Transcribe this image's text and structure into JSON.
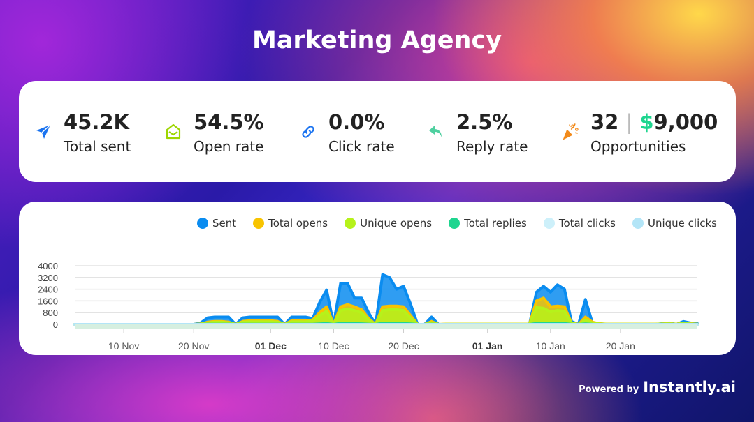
{
  "title": "Marketing Agency",
  "stats": [
    {
      "icon": "paper-plane-icon",
      "value": "45.2K",
      "label": "Total sent",
      "color": "#1a73f0"
    },
    {
      "icon": "open-envelope-icon",
      "value": "54.5%",
      "label": "Open rate",
      "color": "#9ed600"
    },
    {
      "icon": "link-icon",
      "value": "0.0%",
      "label": "Click rate",
      "color": "#1a73f0"
    },
    {
      "icon": "reply-arrow-icon",
      "value": "2.5%",
      "label": "Reply rate",
      "color": "#4fd0a0"
    },
    {
      "icon": "party-popper-icon",
      "value": "32",
      "separator": "|",
      "currency": "$",
      "amount": "9,000",
      "label": "Opportunities",
      "color": "#f28a1a",
      "currency_color": "#1ed58f"
    }
  ],
  "footer": {
    "powered": "Powered by",
    "brand": "Instantly.ai"
  },
  "chart_data": {
    "type": "area",
    "x_start": "Nov 3",
    "x_end": "Jan 31",
    "ylim": [
      0,
      4000
    ],
    "yticks": [
      0,
      800,
      1600,
      2400,
      3200,
      4000
    ],
    "ytick_labels": [
      "0",
      "800",
      "1600",
      "2400",
      "3200",
      "4000"
    ],
    "xticks": [
      {
        "label": "10 Nov",
        "day": 7,
        "bold": false
      },
      {
        "label": "20 Nov",
        "day": 17,
        "bold": false
      },
      {
        "label": "01 Dec",
        "day": 28,
        "bold": true
      },
      {
        "label": "10 Dec",
        "day": 37,
        "bold": false
      },
      {
        "label": "20 Dec",
        "day": 47,
        "bold": false
      },
      {
        "label": "01 Jan",
        "day": 59,
        "bold": true
      },
      {
        "label": "10 Jan",
        "day": 68,
        "bold": false
      },
      {
        "label": "20 Jan",
        "day": 78,
        "bold": false
      }
    ],
    "grid": true,
    "legend_position": "top-right",
    "series": [
      {
        "name": "Sent",
        "color": "#0a8cf0",
        "values": [
          0,
          0,
          0,
          0,
          0,
          0,
          0,
          0,
          0,
          0,
          0,
          0,
          0,
          0,
          0,
          0,
          0,
          0,
          100,
          450,
          500,
          500,
          500,
          0,
          450,
          500,
          500,
          500,
          500,
          500,
          0,
          500,
          500,
          500,
          400,
          1500,
          2350,
          0,
          2800,
          2800,
          1800,
          1800,
          800,
          0,
          3400,
          3200,
          2400,
          2600,
          1400,
          0,
          0,
          500,
          0,
          0,
          0,
          0,
          0,
          0,
          0,
          0,
          0,
          0,
          0,
          0,
          0,
          0,
          2200,
          2600,
          2200,
          2700,
          2400,
          200,
          0,
          1700,
          100,
          50,
          0,
          0,
          0,
          0,
          0,
          0,
          0,
          0,
          50,
          100,
          0,
          200,
          100,
          50
        ]
      },
      {
        "name": "Total opens",
        "color": "#f8c400",
        "values": [
          0,
          0,
          0,
          0,
          0,
          0,
          0,
          0,
          0,
          0,
          0,
          0,
          0,
          0,
          0,
          0,
          0,
          0,
          30,
          150,
          200,
          200,
          150,
          0,
          200,
          250,
          250,
          250,
          250,
          200,
          0,
          250,
          250,
          250,
          300,
          800,
          1200,
          0,
          1200,
          1350,
          1200,
          1000,
          400,
          0,
          1200,
          1250,
          1250,
          1200,
          600,
          0,
          0,
          200,
          0,
          20,
          20,
          20,
          20,
          20,
          20,
          20,
          20,
          20,
          20,
          20,
          20,
          20,
          1600,
          1800,
          1200,
          1250,
          1200,
          100,
          0,
          500,
          150,
          50,
          20,
          20,
          20,
          20,
          20,
          20,
          20,
          20,
          40,
          60,
          20,
          100,
          50,
          20
        ]
      },
      {
        "name": "Unique opens",
        "color": "#b6f21a",
        "values": [
          0,
          0,
          0,
          0,
          0,
          0,
          0,
          0,
          0,
          0,
          0,
          0,
          0,
          0,
          0,
          0,
          0,
          0,
          20,
          100,
          150,
          150,
          100,
          0,
          150,
          180,
          180,
          180,
          180,
          150,
          0,
          180,
          180,
          180,
          220,
          600,
          900,
          0,
          950,
          1050,
          950,
          800,
          300,
          0,
          950,
          1000,
          1000,
          950,
          450,
          0,
          0,
          120,
          0,
          10,
          10,
          10,
          10,
          10,
          10,
          10,
          10,
          10,
          10,
          10,
          10,
          10,
          1150,
          1100,
          850,
          950,
          900,
          70,
          0,
          300,
          100,
          30,
          10,
          10,
          10,
          10,
          10,
          10,
          10,
          10,
          30,
          40,
          10,
          70,
          30,
          10
        ]
      },
      {
        "name": "Total replies",
        "color": "#1ed58f",
        "values": [
          0,
          0,
          0,
          0,
          0,
          0,
          0,
          0,
          0,
          0,
          0,
          0,
          0,
          0,
          0,
          0,
          0,
          0,
          0,
          10,
          10,
          10,
          10,
          0,
          10,
          15,
          15,
          15,
          15,
          10,
          0,
          15,
          15,
          15,
          10,
          40,
          60,
          0,
          70,
          70,
          50,
          45,
          20,
          0,
          80,
          80,
          60,
          60,
          35,
          0,
          0,
          10,
          0,
          0,
          0,
          0,
          0,
          0,
          0,
          0,
          0,
          0,
          0,
          0,
          0,
          0,
          60,
          65,
          55,
          65,
          60,
          5,
          0,
          40,
          3,
          0,
          0,
          0,
          0,
          0,
          0,
          0,
          0,
          0,
          0,
          3,
          0,
          5,
          3,
          0
        ]
      },
      {
        "name": "Total clicks",
        "color": "#cdf0fa",
        "values": [
          0,
          0,
          0,
          0,
          0,
          0,
          0,
          0,
          0,
          0,
          0,
          0,
          0,
          0,
          0,
          0,
          0,
          0,
          0,
          0,
          0,
          0,
          0,
          0,
          0,
          0,
          0,
          0,
          0,
          0,
          0,
          0,
          0,
          0,
          0,
          0,
          0,
          0,
          0,
          0,
          0,
          0,
          0,
          0,
          0,
          0,
          0,
          0,
          0,
          0,
          0,
          0,
          0,
          0,
          0,
          0,
          0,
          0,
          0,
          0,
          0,
          0,
          0,
          0,
          0,
          0,
          0,
          0,
          0,
          0,
          0,
          0,
          0,
          0,
          0,
          0,
          0,
          0,
          0,
          0,
          0,
          0,
          0,
          0,
          0,
          0,
          0,
          0,
          0,
          0
        ]
      },
      {
        "name": "Unique clicks",
        "color": "#b3e5f7",
        "values": [
          0,
          0,
          0,
          0,
          0,
          0,
          0,
          0,
          0,
          0,
          0,
          0,
          0,
          0,
          0,
          0,
          0,
          0,
          0,
          0,
          0,
          0,
          0,
          0,
          0,
          0,
          0,
          0,
          0,
          0,
          0,
          0,
          0,
          0,
          0,
          0,
          0,
          0,
          0,
          0,
          0,
          0,
          0,
          0,
          0,
          0,
          0,
          0,
          0,
          0,
          0,
          0,
          0,
          0,
          0,
          0,
          0,
          0,
          0,
          0,
          0,
          0,
          0,
          0,
          0,
          0,
          0,
          0,
          0,
          0,
          0,
          0,
          0,
          0,
          0,
          0,
          0,
          0,
          0,
          0,
          0,
          0,
          0,
          0,
          0,
          0,
          0,
          0,
          0,
          0
        ]
      }
    ]
  }
}
